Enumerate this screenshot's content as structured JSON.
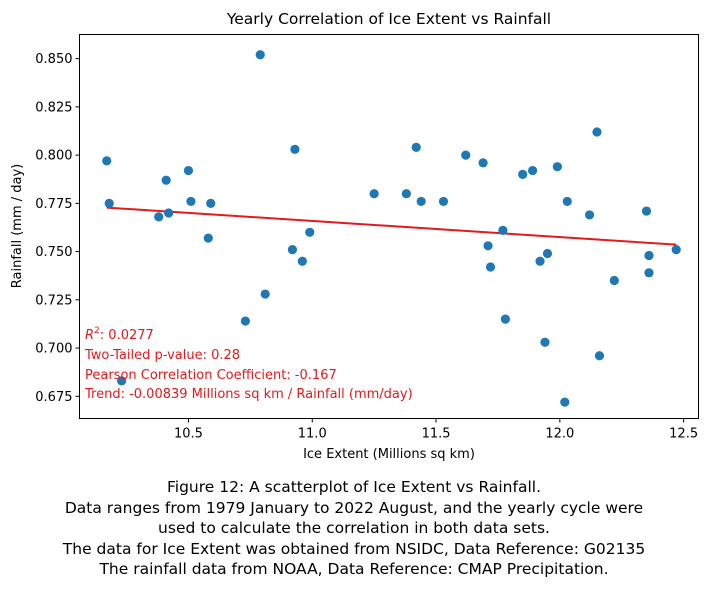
{
  "chart_data": {
    "type": "scatter",
    "title": "Yearly Correlation of Ice Extent vs Rainfall",
    "xlabel": "Ice Extent (Millions sq km)",
    "ylabel": "Rainfall (mm / day)",
    "xlim": [
      10.06,
      12.56
    ],
    "ylim": [
      0.6635,
      0.8625
    ],
    "xticks": [
      10.5,
      11.0,
      11.5,
      12.0,
      12.5
    ],
    "xtick_labels": [
      "10.5",
      "11.0",
      "11.5",
      "12.0",
      "12.5"
    ],
    "yticks": [
      0.675,
      0.7,
      0.725,
      0.75,
      0.775,
      0.8,
      0.825,
      0.85
    ],
    "ytick_labels": [
      "0.675",
      "0.700",
      "0.725",
      "0.750",
      "0.775",
      "0.800",
      "0.825",
      "0.850"
    ],
    "grid": false,
    "legend": "none",
    "point_color": "#1f77b4",
    "trend_color": "#e31a1c",
    "trend_line": {
      "x": [
        10.17,
        12.47
      ],
      "y": [
        0.7728,
        0.7536
      ]
    },
    "points": [
      {
        "x": 10.17,
        "y": 0.797
      },
      {
        "x": 10.18,
        "y": 0.775
      },
      {
        "x": 10.23,
        "y": 0.683
      },
      {
        "x": 10.38,
        "y": 0.768
      },
      {
        "x": 10.41,
        "y": 0.787
      },
      {
        "x": 10.42,
        "y": 0.77
      },
      {
        "x": 10.5,
        "y": 0.792
      },
      {
        "x": 10.51,
        "y": 0.776
      },
      {
        "x": 10.58,
        "y": 0.757
      },
      {
        "x": 10.59,
        "y": 0.775
      },
      {
        "x": 10.73,
        "y": 0.714
      },
      {
        "x": 10.79,
        "y": 0.852
      },
      {
        "x": 10.81,
        "y": 0.728
      },
      {
        "x": 10.92,
        "y": 0.751
      },
      {
        "x": 10.93,
        "y": 0.803
      },
      {
        "x": 10.96,
        "y": 0.745
      },
      {
        "x": 10.99,
        "y": 0.76
      },
      {
        "x": 11.25,
        "y": 0.78
      },
      {
        "x": 11.38,
        "y": 0.78
      },
      {
        "x": 11.42,
        "y": 0.804
      },
      {
        "x": 11.44,
        "y": 0.776
      },
      {
        "x": 11.53,
        "y": 0.776
      },
      {
        "x": 11.62,
        "y": 0.8
      },
      {
        "x": 11.69,
        "y": 0.796
      },
      {
        "x": 11.71,
        "y": 0.753
      },
      {
        "x": 11.72,
        "y": 0.742
      },
      {
        "x": 11.77,
        "y": 0.761
      },
      {
        "x": 11.78,
        "y": 0.715
      },
      {
        "x": 11.85,
        "y": 0.79
      },
      {
        "x": 11.89,
        "y": 0.792
      },
      {
        "x": 11.92,
        "y": 0.745
      },
      {
        "x": 11.94,
        "y": 0.703
      },
      {
        "x": 11.95,
        "y": 0.749
      },
      {
        "x": 11.99,
        "y": 0.794
      },
      {
        "x": 12.02,
        "y": 0.672
      },
      {
        "x": 12.03,
        "y": 0.776
      },
      {
        "x": 12.12,
        "y": 0.769
      },
      {
        "x": 12.15,
        "y": 0.812
      },
      {
        "x": 12.16,
        "y": 0.696
      },
      {
        "x": 12.22,
        "y": 0.735
      },
      {
        "x": 12.35,
        "y": 0.771
      },
      {
        "x": 12.36,
        "y": 0.739
      },
      {
        "x": 12.36,
        "y": 0.748
      },
      {
        "x": 12.47,
        "y": 0.751
      }
    ],
    "annotations": {
      "r2_symbol": "R",
      "r2_exponent": "2",
      "r2_value": ": 0.0277",
      "p_value": "Two-Tailed p-value: 0.28",
      "pearson": "Pearson Correlation Coefficient: -0.167",
      "trend": "Trend: -0.00839 Millions sq km / Rainfall (mm/day)"
    }
  },
  "caption": {
    "line1": "Figure 12: A scatterplot of Ice Extent vs Rainfall.",
    "line2": "Data ranges from 1979 January to 2022 August, and the yearly cycle were",
    "line3": "used to calculate the correlation in both data sets.",
    "line4": "The data for Ice Extent was obtained from NSIDC, Data Reference: G02135",
    "line5": "The rainfall data from NOAA, Data Reference: CMAP Precipitation."
  }
}
